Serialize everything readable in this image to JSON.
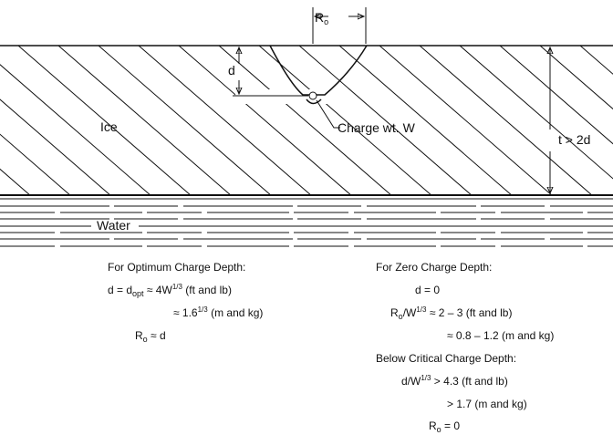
{
  "diagram": {
    "labels": [
      {
        "name": "radius-label",
        "parts": [
          {
            "t": "R"
          },
          {
            "t": "o",
            "sub": true
          }
        ]
      },
      {
        "name": "depth-label",
        "parts": [
          {
            "t": "d"
          }
        ]
      },
      {
        "name": "ice-label",
        "parts": [
          {
            "t": "Ice"
          }
        ]
      },
      {
        "name": "charge-label",
        "parts": [
          {
            "t": "Charge wt. W"
          }
        ]
      },
      {
        "name": "thickness-label",
        "parts": [
          {
            "t": "t > 2d"
          }
        ]
      },
      {
        "name": "water-label",
        "parts": [
          {
            "t": "Water"
          }
        ]
      }
    ],
    "left_block": [
      {
        "parts": [
          {
            "t": "For Optimum Charge Depth:"
          }
        ]
      },
      {
        "parts": [
          {
            "t": "d = d"
          },
          {
            "t": "opt",
            "sub": true
          },
          {
            "t": " ≈ 4W"
          },
          {
            "t": "1/3",
            "sup": true
          },
          {
            "t": " (ft and lb)"
          }
        ]
      },
      {
        "parts": [
          {
            "t": "≈ 1.6"
          },
          {
            "t": "1/3",
            "sup": true
          },
          {
            "t": " (m and kg)"
          }
        ]
      },
      {
        "parts": [
          {
            "t": "R"
          },
          {
            "t": "o",
            "sub": true
          },
          {
            "t": " ≈ d"
          }
        ]
      }
    ],
    "right_block": [
      {
        "parts": [
          {
            "t": "For Zero Charge Depth:"
          }
        ]
      },
      {
        "parts": [
          {
            "t": "d = 0"
          }
        ]
      },
      {
        "parts": [
          {
            "t": "R"
          },
          {
            "t": "o",
            "sub": true
          },
          {
            "t": "/W"
          },
          {
            "t": "1/3",
            "sup": true
          },
          {
            "t": " ≈ 2 – 3 (ft and lb)"
          }
        ]
      },
      {
        "parts": [
          {
            "t": "≈ 0.8 – 1.2 (m and kg)"
          }
        ]
      },
      {
        "parts": [
          {
            "t": "Below Critical Charge Depth:"
          }
        ]
      },
      {
        "parts": [
          {
            "t": "d/W"
          },
          {
            "t": "1/3",
            "sup": true
          },
          {
            "t": " > 4.3 (ft and lb)"
          }
        ]
      },
      {
        "parts": [
          {
            "t": "> 1.7 (m and kg)"
          }
        ]
      },
      {
        "parts": [
          {
            "t": "R"
          },
          {
            "t": "o",
            "sub": true
          },
          {
            "t": " = 0"
          }
        ]
      }
    ]
  }
}
